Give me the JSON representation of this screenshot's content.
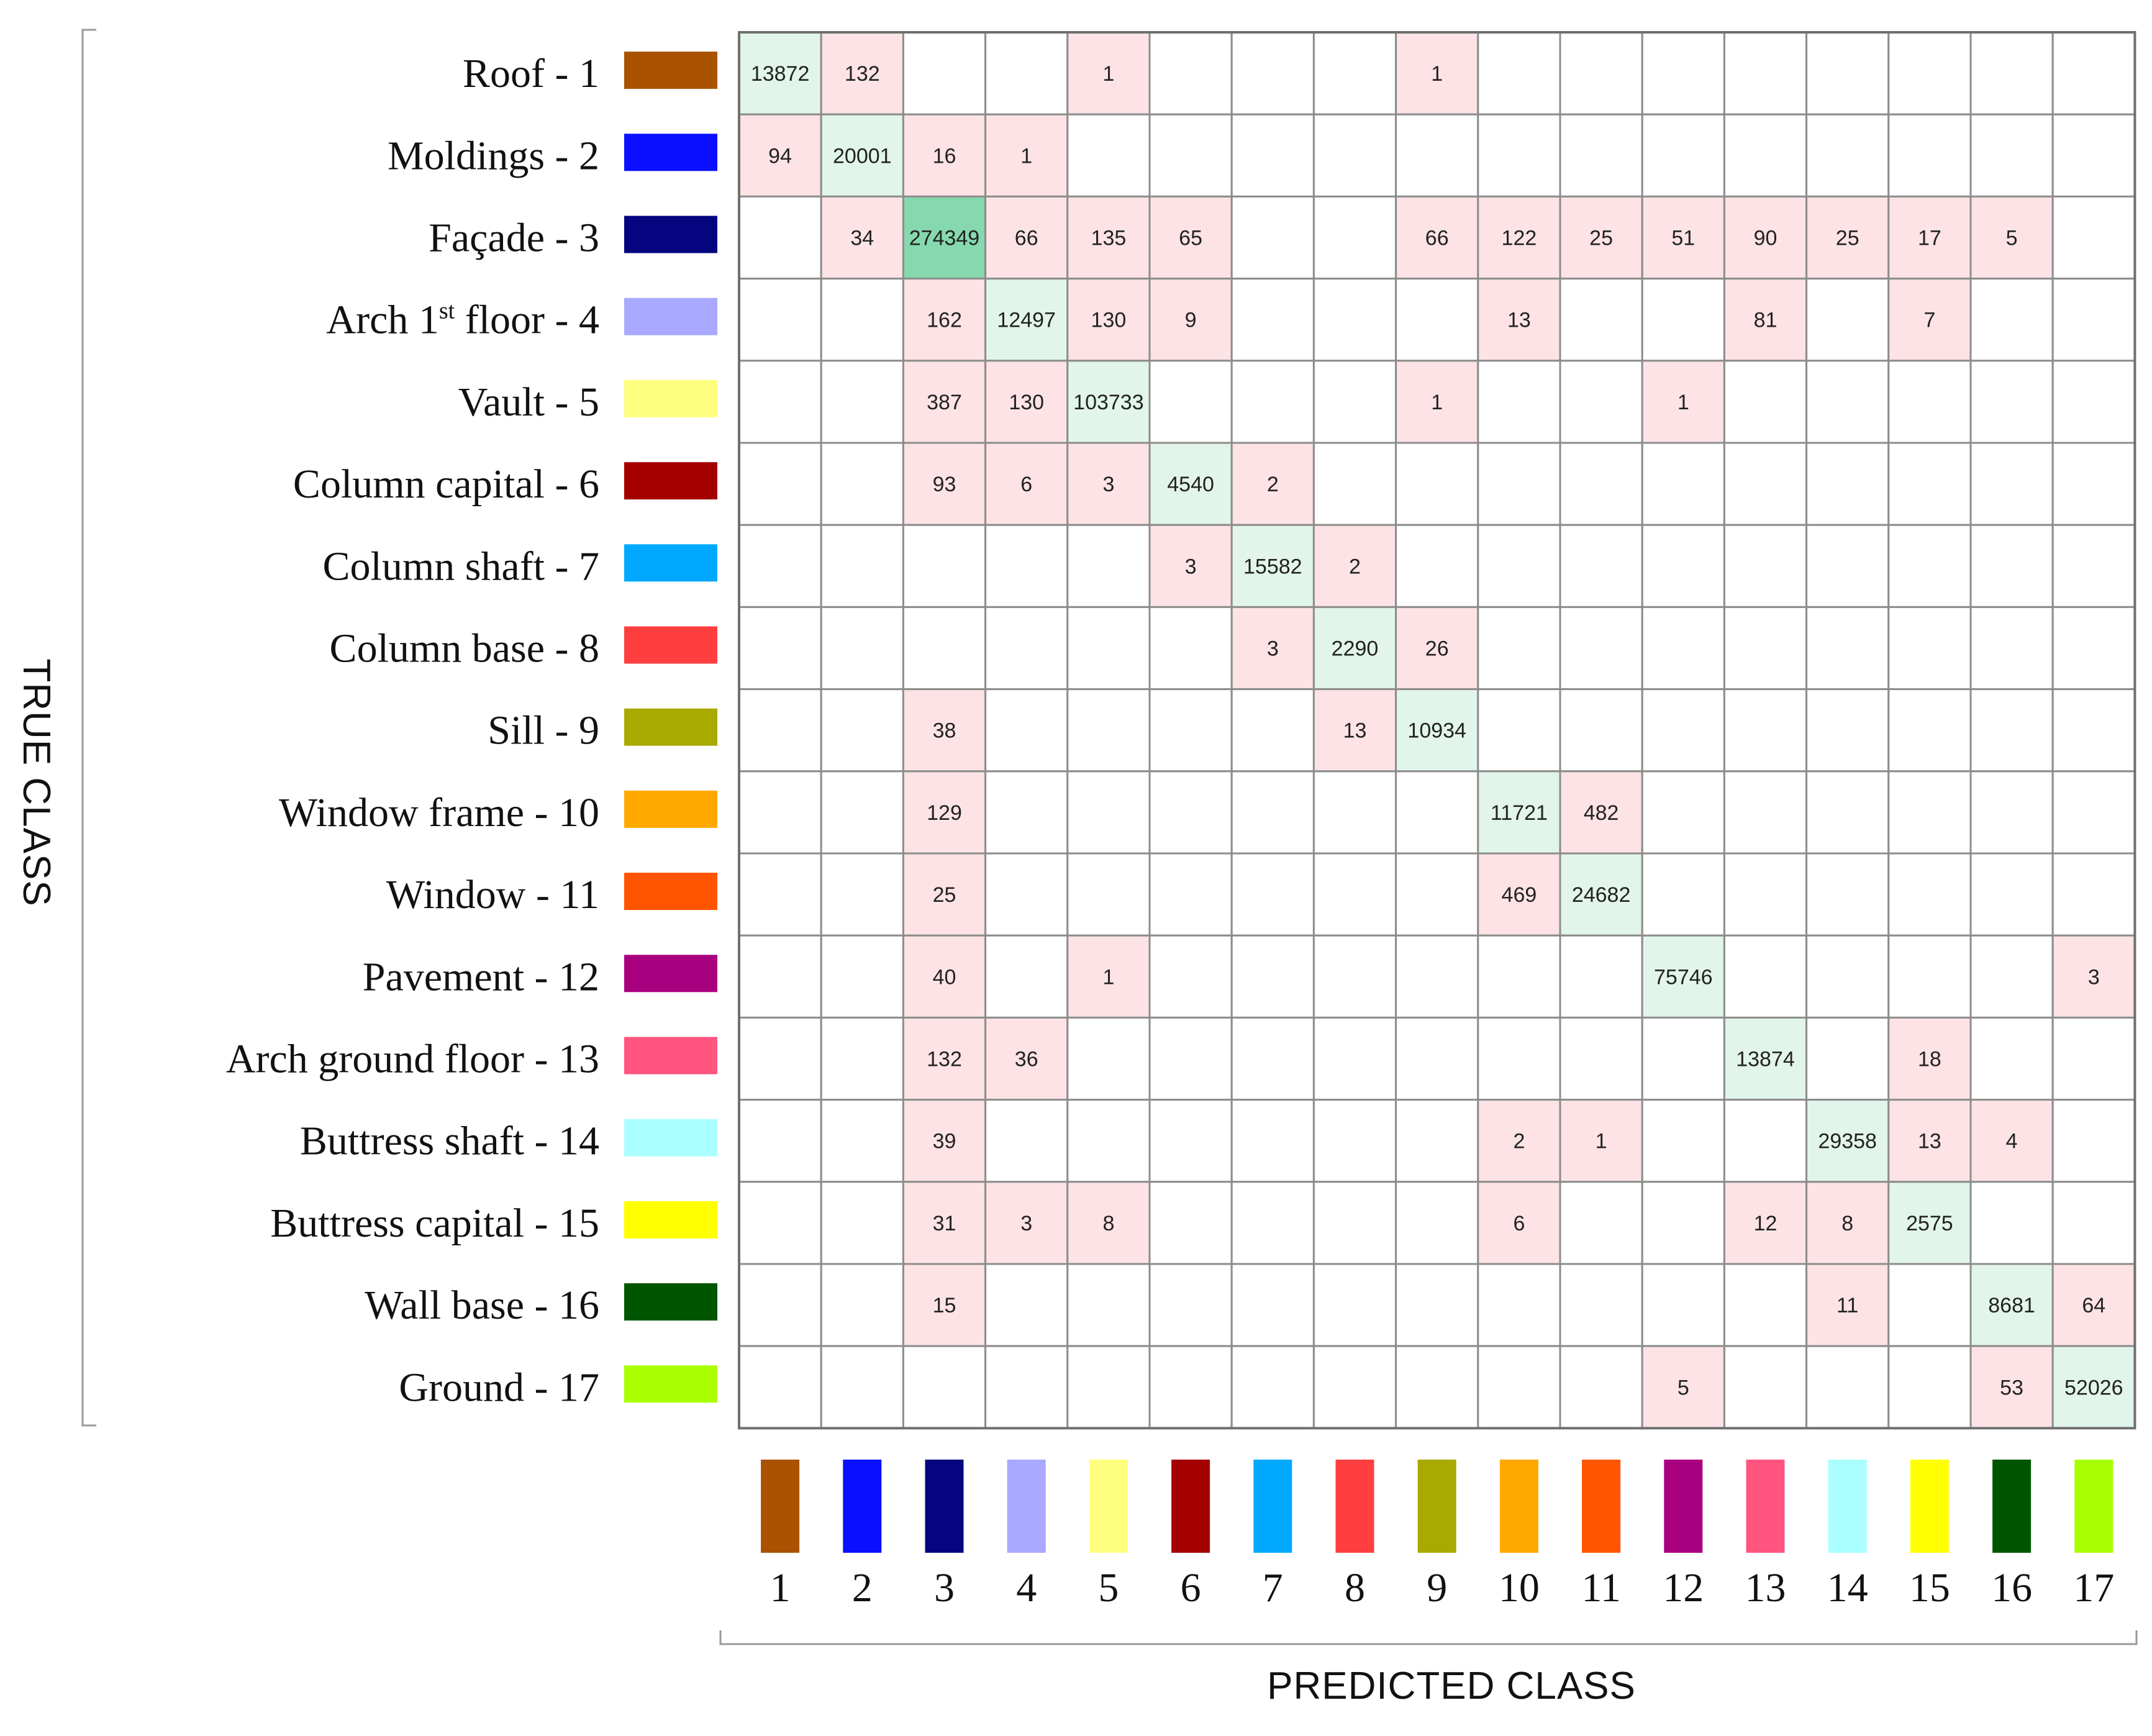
{
  "chart_data": {
    "type": "heatmap",
    "title": "",
    "xlabel": "PREDICTED CLASS",
    "ylabel": "TRUE CLASS",
    "classes": [
      {
        "id": "1",
        "name": "Roof - 1",
        "color": "#A95200"
      },
      {
        "id": "2",
        "name": "Moldings - 2",
        "color": "#0A10FF"
      },
      {
        "id": "3",
        "name": "Façade - 3",
        "color": "#05057F"
      },
      {
        "id": "4",
        "name": "Arch 1st floor - 4",
        "color": "#A9A9FF"
      },
      {
        "id": "5",
        "name": "Vault - 5",
        "color": "#FFFF7F"
      },
      {
        "id": "6",
        "name": "Column capital - 6",
        "color": "#A50000"
      },
      {
        "id": "7",
        "name": "Column shaft - 7",
        "color": "#00A9FF"
      },
      {
        "id": "8",
        "name": "Column base - 8",
        "color": "#FF3F3F"
      },
      {
        "id": "9",
        "name": "Sill - 9",
        "color": "#A9A900"
      },
      {
        "id": "10",
        "name": "Window frame - 10",
        "color": "#FFA900"
      },
      {
        "id": "11",
        "name": "Window - 11",
        "color": "#FF5400"
      },
      {
        "id": "12",
        "name": "Pavement - 12",
        "color": "#A9007F"
      },
      {
        "id": "13",
        "name": "Arch ground floor - 13",
        "color": "#FF557F"
      },
      {
        "id": "14",
        "name": "Buttress shaft - 14",
        "color": "#A9FFFF"
      },
      {
        "id": "15",
        "name": "Buttress capital - 15",
        "color": "#FFFF00"
      },
      {
        "id": "16",
        "name": "Wall base - 16",
        "color": "#005500"
      },
      {
        "id": "17",
        "name": "Ground - 17",
        "color": "#A9FF00"
      }
    ],
    "matrix": [
      [
        13872,
        132,
        null,
        null,
        1,
        null,
        null,
        null,
        1,
        null,
        null,
        null,
        null,
        null,
        null,
        null,
        null
      ],
      [
        94,
        20001,
        16,
        1,
        null,
        null,
        null,
        null,
        null,
        null,
        null,
        null,
        null,
        null,
        null,
        null,
        null
      ],
      [
        null,
        34,
        274349,
        66,
        135,
        65,
        null,
        null,
        66,
        122,
        25,
        51,
        90,
        25,
        17,
        5,
        null
      ],
      [
        null,
        null,
        162,
        12497,
        130,
        9,
        null,
        null,
        null,
        13,
        null,
        null,
        81,
        null,
        7,
        null,
        null
      ],
      [
        null,
        null,
        387,
        130,
        103733,
        null,
        null,
        null,
        1,
        null,
        null,
        1,
        null,
        null,
        null,
        null,
        null
      ],
      [
        null,
        null,
        93,
        6,
        3,
        4540,
        2,
        null,
        null,
        null,
        null,
        null,
        null,
        null,
        null,
        null,
        null
      ],
      [
        null,
        null,
        null,
        null,
        null,
        3,
        15582,
        2,
        null,
        null,
        null,
        null,
        null,
        null,
        null,
        null,
        null
      ],
      [
        null,
        null,
        null,
        null,
        null,
        null,
        3,
        2290,
        26,
        null,
        null,
        null,
        null,
        null,
        null,
        null,
        null
      ],
      [
        null,
        null,
        38,
        null,
        null,
        null,
        null,
        13,
        10934,
        null,
        null,
        null,
        null,
        null,
        null,
        null,
        null
      ],
      [
        null,
        null,
        129,
        null,
        null,
        null,
        null,
        null,
        null,
        11721,
        482,
        null,
        null,
        null,
        null,
        null,
        null
      ],
      [
        null,
        null,
        25,
        null,
        null,
        null,
        null,
        null,
        null,
        469,
        24682,
        null,
        null,
        null,
        null,
        null,
        null
      ],
      [
        null,
        null,
        40,
        null,
        1,
        null,
        null,
        null,
        null,
        null,
        null,
        75746,
        null,
        null,
        null,
        null,
        3
      ],
      [
        null,
        null,
        132,
        36,
        null,
        null,
        null,
        null,
        null,
        null,
        null,
        null,
        13874,
        null,
        18,
        null,
        null
      ],
      [
        null,
        null,
        39,
        null,
        null,
        null,
        null,
        null,
        null,
        2,
        1,
        null,
        null,
        29358,
        13,
        4,
        null
      ],
      [
        null,
        null,
        31,
        3,
        8,
        null,
        null,
        null,
        null,
        6,
        null,
        null,
        12,
        8,
        2575,
        null,
        null
      ],
      [
        null,
        null,
        15,
        null,
        null,
        null,
        null,
        null,
        null,
        null,
        null,
        null,
        null,
        11,
        null,
        8681,
        64
      ],
      [
        null,
        null,
        null,
        null,
        null,
        null,
        null,
        null,
        null,
        null,
        null,
        5,
        null,
        null,
        null,
        53,
        52026
      ]
    ],
    "diagonal_color": "#E2F5EA",
    "diagonal_strong_color": "#86D8AE",
    "offdiagonal_color": "#FDE3E5",
    "grid_color": "#8C8C8C"
  }
}
